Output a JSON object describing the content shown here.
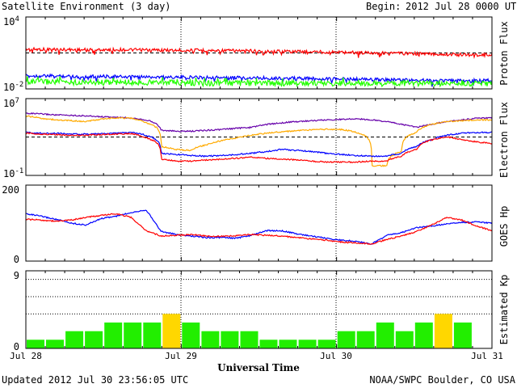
{
  "header": {
    "title": "Satellite Environment (3 day)",
    "begin_label": "Begin:",
    "begin_value": "2012 Jul 28 0000 UTC"
  },
  "footer": {
    "updated": "Updated 2012 Jul 30 23:56:05 UTC",
    "credit": "NOAA/SWPC Boulder, CO USA"
  },
  "colors": {
    "red": "#ff0000",
    "blue": "#0000ff",
    "green": "#22ff00",
    "purple": "#6600aa",
    "orange": "#ffaa00",
    "kp_normal": "#22ee00",
    "kp_active": "#ffd700"
  },
  "chart_data": [
    {
      "type": "line",
      "ylabel": "Proton Flux",
      "y_scale": "log",
      "ylim": [
        0.01,
        10000
      ],
      "yticks": [
        {
          "base": "10",
          "exp": "4"
        },
        {
          "base": "10",
          "exp": "-2"
        }
      ],
      "threshold": 10,
      "series": [
        {
          "color": "red",
          "values": [
            20,
            20,
            18,
            19,
            18,
            17,
            17,
            16,
            15,
            14,
            13,
            12,
            11,
            10,
            9,
            8,
            7,
            7
          ]
        },
        {
          "color": "blue",
          "values": [
            0.12,
            0.12,
            0.11,
            0.11,
            0.1,
            0.1,
            0.095,
            0.09,
            0.085,
            0.08,
            0.075,
            0.07,
            0.065,
            0.06,
            0.055,
            0.05,
            0.05,
            0.05
          ]
        },
        {
          "color": "green",
          "values": [
            0.04,
            0.04,
            0.035,
            0.035,
            0.035,
            0.035,
            0.03,
            0.03,
            0.03,
            0.03,
            0.03,
            0.03,
            0.03,
            0.028,
            0.028,
            0.028,
            0.028,
            0.028
          ]
        }
      ]
    },
    {
      "type": "line",
      "ylabel": "Electron Flux",
      "y_scale": "log",
      "ylim": [
        0.1,
        10000000
      ],
      "yticks": [
        {
          "base": "10",
          "exp": "7"
        },
        {
          "base": "10",
          "exp": "-1"
        }
      ],
      "threshold": 1000,
      "series": [
        {
          "color": "purple",
          "values": [
            300000,
            250000,
            200000,
            180000,
            160000,
            130000,
            110000,
            100000,
            60000,
            5000,
            4000,
            4000,
            5000,
            6000,
            8000,
            10000,
            20000,
            30000,
            40000,
            50000,
            60000,
            70000,
            80000,
            60000,
            40000,
            20000,
            10000,
            20000,
            40000,
            60000,
            90000,
            100000
          ]
        },
        {
          "color": "orange",
          "values": [
            150000,
            90000,
            60000,
            50000,
            40000,
            70000,
            100000,
            90000,
            30000,
            100,
            50,
            40,
            150,
            400,
            800,
            1500,
            2500,
            3500,
            4500,
            5500,
            6500,
            6000,
            3000,
            1,
            1,
            30,
            3000,
            20000,
            40000,
            50000,
            60000,
            60000
          ]
        },
        {
          "color": "blue",
          "values": [
            3000,
            2500,
            2500,
            2000,
            2000,
            2200,
            2500,
            3000,
            1500,
            20,
            15,
            12,
            10,
            12,
            15,
            20,
            30,
            50,
            40,
            30,
            20,
            15,
            12,
            10,
            10,
            20,
            100,
            500,
            1500,
            2500,
            3000,
            3000
          ]
        },
        {
          "color": "red",
          "values": [
            2500,
            2000,
            1800,
            1500,
            1500,
            1800,
            2000,
            2200,
            800,
            5,
            3,
            3,
            4,
            5,
            6,
            8,
            6,
            5,
            4,
            3,
            2.5,
            2.5,
            2.5,
            3,
            3,
            10,
            50,
            500,
            1000,
            500,
            300,
            200
          ]
        }
      ]
    },
    {
      "type": "line",
      "ylabel": "GOES Hp",
      "ylim": [
        0,
        200
      ],
      "yticks": [
        {
          "label": "200"
        },
        {
          "label": "0"
        }
      ],
      "series": [
        {
          "color": "blue",
          "values": [
            125,
            118,
            110,
            100,
            95,
            112,
            118,
            128,
            135,
            78,
            70,
            66,
            62,
            62,
            60,
            68,
            80,
            80,
            72,
            66,
            60,
            55,
            52,
            45,
            68,
            75,
            88,
            92,
            98,
            102,
            103,
            100
          ]
        },
        {
          "color": "red",
          "values": [
            110,
            108,
            105,
            108,
            115,
            120,
            125,
            115,
            80,
            66,
            68,
            70,
            66,
            65,
            67,
            70,
            68,
            66,
            62,
            58,
            55,
            50,
            48,
            45,
            57,
            66,
            78,
            95,
            115,
            108,
            92,
            80
          ]
        }
      ]
    },
    {
      "type": "bar",
      "ylabel": "Estimated Kp",
      "ylim": [
        0,
        9
      ],
      "yticks": [
        {
          "label": "9"
        },
        {
          "label": "0"
        }
      ],
      "gridlines": [
        4,
        6,
        8
      ],
      "values": [
        1,
        1,
        2,
        2,
        3,
        3,
        3,
        4,
        3,
        2,
        2,
        2,
        1,
        1,
        1,
        1,
        2,
        2,
        3,
        2,
        3,
        4,
        3
      ],
      "active_threshold": 4
    }
  ],
  "x_axis": {
    "label": "Universal Time",
    "ticks": [
      "Jul 28",
      "Jul 29",
      "Jul 30",
      "Jul 31"
    ]
  }
}
